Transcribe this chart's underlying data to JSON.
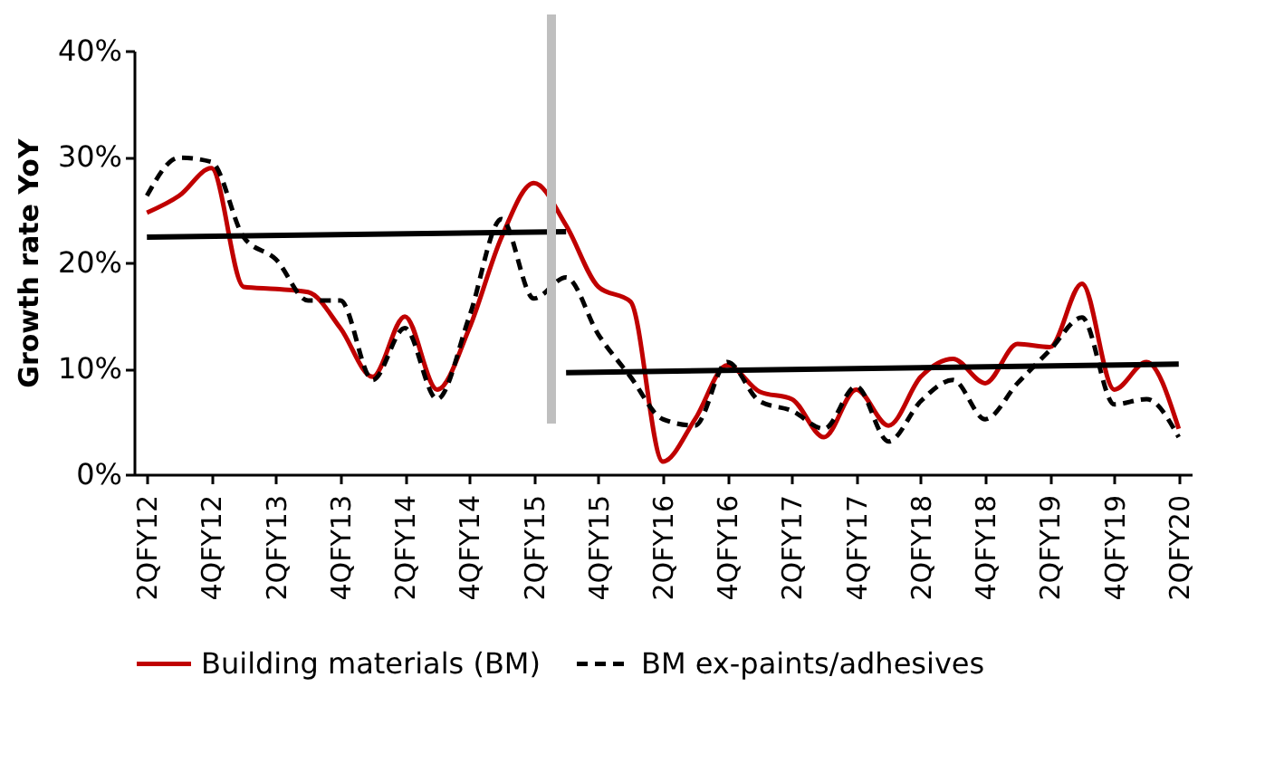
{
  "chart_data": {
    "type": "line",
    "ylabel": "Growth rate YoY",
    "categories": [
      "2QFY12",
      null,
      "4QFY12",
      null,
      "2QFY13",
      null,
      "4QFY13",
      null,
      "2QFY14",
      null,
      "4QFY14",
      null,
      "2QFY15",
      null,
      "4QFY15",
      null,
      "2QFY16",
      null,
      "4QFY16",
      null,
      "2QFY17",
      null,
      "4QFY17",
      null,
      "2QFY18",
      null,
      "4QFY18",
      null,
      "2QFY19",
      null,
      "4QFY19",
      null,
      "2QFY20"
    ],
    "series": [
      {
        "name": "Building materials (BM)",
        "color": "#c00000",
        "line_style": "solid",
        "values": [
          24.7,
          26.3,
          28.9,
          17.7,
          17.5,
          17.2,
          13.8,
          9.2,
          14.9,
          8.0,
          13.8,
          22.4,
          27.5,
          23.5,
          17.7,
          16.3,
          1.2,
          5.2,
          10.3,
          7.8,
          7.1,
          3.5,
          8.0,
          4.6,
          9.2,
          10.9,
          8.6,
          12.3,
          12.0,
          18.0,
          8.0,
          10.6,
          4.3
        ]
      },
      {
        "name": "BM ex-paints/adhesives",
        "color": "#000000",
        "line_style": "dashed",
        "values": [
          26.3,
          29.9,
          29.5,
          22.4,
          20.3,
          16.4,
          16.4,
          8.9,
          13.8,
          7.1,
          14.9,
          24.1,
          16.6,
          18.6,
          13.2,
          9.2,
          5.2,
          4.6,
          10.6,
          6.9,
          6.0,
          4.3,
          8.3,
          3.1,
          6.9,
          8.9,
          5.2,
          8.6,
          11.7,
          14.8,
          6.6,
          7.1,
          3.5
        ]
      },
      {
        "type": "line",
        "color": "#000000",
        "line_style": "solid",
        "values": [
          22.4,
          null,
          null,
          null,
          null,
          null,
          null,
          null,
          null,
          null,
          null,
          null,
          null,
          22.9,
          null,
          null,
          null,
          null,
          null,
          null,
          null,
          null,
          null,
          null,
          null,
          null,
          null,
          null,
          null,
          null,
          null,
          null,
          null
        ]
      },
      {
        "type": "line",
        "color": "#000000",
        "line_style": "solid",
        "values": [
          null,
          null,
          null,
          null,
          null,
          null,
          null,
          null,
          null,
          null,
          null,
          null,
          null,
          9.6,
          null,
          null,
          null,
          null,
          null,
          null,
          null,
          null,
          null,
          null,
          null,
          null,
          null,
          null,
          null,
          null,
          null,
          null,
          10.4
        ]
      }
    ],
    "ylim": [
      0,
      40
    ],
    "yticks": [
      {
        "value": 0,
        "label": "0%"
      },
      {
        "value": 10,
        "label": "10%"
      },
      {
        "value": 20,
        "label": "20%"
      },
      {
        "value": 30,
        "label": "30%"
      },
      {
        "value": 40,
        "label": "40%"
      }
    ],
    "grid": false,
    "legend": "bottom",
    "marker": "none"
  }
}
